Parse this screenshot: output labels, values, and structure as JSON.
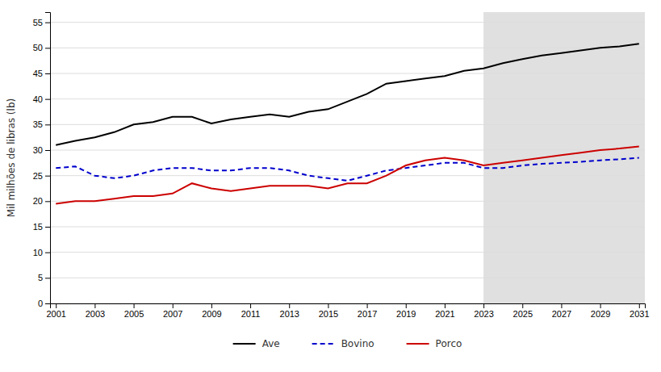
{
  "chart_data": {
    "type": "line",
    "ylabel": "Mil milhões de libras (lb)",
    "x": [
      2001,
      2002,
      2003,
      2004,
      2005,
      2006,
      2007,
      2008,
      2009,
      2010,
      2011,
      2012,
      2013,
      2014,
      2015,
      2016,
      2017,
      2018,
      2019,
      2020,
      2021,
      2022,
      2023,
      2024,
      2025,
      2026,
      2027,
      2028,
      2029,
      2030,
      2031
    ],
    "series": [
      {
        "name": "Ave",
        "color": "#000000",
        "line_style": "solid",
        "values": [
          31.0,
          31.8,
          32.5,
          33.5,
          35.0,
          35.5,
          36.5,
          36.5,
          35.2,
          36.0,
          36.5,
          37.0,
          36.5,
          37.5,
          38.0,
          39.5,
          41.0,
          43.0,
          43.5,
          44.0,
          44.5,
          45.5,
          46.0,
          47.0,
          47.8,
          48.5,
          49.0,
          49.5,
          50.0,
          50.3,
          50.8
        ]
      },
      {
        "name": "Bovino",
        "color": "#0000cc",
        "line_style": "dashed",
        "values": [
          26.5,
          26.8,
          25.0,
          24.5,
          25.0,
          26.0,
          26.5,
          26.5,
          26.0,
          26.0,
          26.5,
          26.5,
          26.0,
          25.0,
          24.5,
          24.0,
          25.0,
          26.0,
          26.5,
          27.0,
          27.5,
          27.5,
          26.5,
          26.5,
          27.0,
          27.3,
          27.5,
          27.7,
          28.0,
          28.2,
          28.5
        ]
      },
      {
        "name": "Porco",
        "color": "#cc0000",
        "line_style": "solid",
        "values": [
          19.5,
          20.0,
          20.0,
          20.5,
          21.0,
          21.0,
          21.5,
          23.5,
          22.5,
          22.0,
          22.5,
          23.0,
          23.0,
          23.0,
          22.5,
          23.5,
          23.5,
          25.0,
          27.0,
          28.0,
          28.5,
          28.0,
          27.0,
          27.5,
          28.0,
          28.5,
          29.0,
          29.5,
          30.0,
          30.3,
          30.7
        ]
      }
    ],
    "xlim": [
      2000.7,
      2031.3
    ],
    "xticks": [
      2001,
      2003,
      2005,
      2007,
      2009,
      2011,
      2013,
      2015,
      2017,
      2019,
      2021,
      2023,
      2025,
      2027,
      2029,
      2031
    ],
    "ylim": [
      0,
      57
    ],
    "yticks": [
      0,
      5,
      10,
      15,
      20,
      25,
      30,
      35,
      40,
      45,
      50,
      55
    ],
    "grid": "y",
    "legend": "bottom",
    "shade": {
      "x": [
        2023,
        2031.5
      ],
      "color": "#e0e0e0"
    }
  }
}
